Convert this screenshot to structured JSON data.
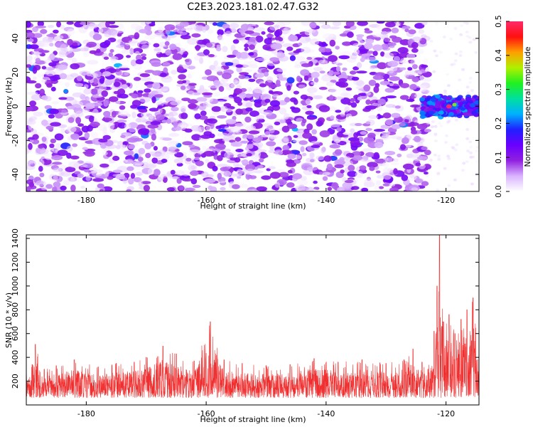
{
  "title": "C2E3.2023.181.02.47.G32",
  "colors": {
    "snr_line": "#f03030",
    "colormap": [
      "#ffffff",
      "#d9b3ff",
      "#9020e0",
      "#6a00ff",
      "#2020ff",
      "#00b0ff",
      "#00e0a0",
      "#20f020",
      "#b0f000",
      "#ffa000",
      "#ff1010",
      "#ff2a6a"
    ]
  },
  "chart_data": [
    {
      "type": "heatmap",
      "name_role": "spectrogram",
      "xlabel": "Height of straight line (km)",
      "ylabel": "Frequency (Hz)",
      "xlim": [
        -190,
        -114.5
      ],
      "ylim": [
        -50,
        50
      ],
      "xticks": [
        -180,
        -160,
        -140,
        -120
      ],
      "yticks": [
        -40,
        -20,
        0,
        20,
        40
      ],
      "colorbar": {
        "label": "Normalized spectral amplitude",
        "range": [
          0.0,
          0.5
        ],
        "ticks": [
          0.0,
          0.1,
          0.2,
          0.3,
          0.4,
          0.5
        ],
        "tick_labels": [
          "0.0",
          "0.1",
          "0.2",
          "0.3",
          "0.4",
          "0.5"
        ],
        "placement": "right"
      },
      "description_regions": {
        "broadband_noise_height_range": [
          -190,
          -123
        ],
        "quiet_band_height_range": [
          -123,
          -118
        ],
        "signal_band_height_range": [
          -124,
          -114.5
        ],
        "signal_frequency_range": [
          -5,
          5
        ],
        "signal_peak": {
          "height": -119.5,
          "frequency": 0,
          "amplitude": 0.5
        }
      },
      "grid": false
    },
    {
      "type": "line",
      "xlabel": "Height of straight line (km)",
      "ylabel": "SNR (10 * v/v)",
      "xlim": [
        -190,
        -114.5
      ],
      "ylim": [
        0,
        1430
      ],
      "xticks": [
        -180,
        -160,
        -140,
        -120
      ],
      "yticks": [
        200,
        400,
        600,
        800,
        1000,
        1200,
        1400
      ],
      "grid": false,
      "series": [
        {
          "color": "#f03030",
          "points": [
            [
              -190,
              260
            ],
            [
              -189,
              340
            ],
            [
              -188.5,
              510
            ],
            [
              -187,
              300
            ],
            [
              -185,
              330
            ],
            [
              -182,
              380
            ],
            [
              -178,
              320
            ],
            [
              -175,
              350
            ],
            [
              -172,
              360
            ],
            [
              -170,
              400
            ],
            [
              -167.2,
              495
            ],
            [
              -165,
              430
            ],
            [
              -162,
              370
            ],
            [
              -159.3,
              700
            ],
            [
              -157,
              380
            ],
            [
              -154,
              350
            ],
            [
              -150,
              330
            ],
            [
              -146,
              340
            ],
            [
              -142,
              390
            ],
            [
              -138,
              360
            ],
            [
              -134,
              380
            ],
            [
              -130,
              350
            ],
            [
              -127,
              380
            ],
            [
              -125.5,
              470
            ],
            [
              -124,
              360
            ],
            [
              -123,
              300
            ],
            [
              -122,
              620
            ],
            [
              -121.5,
              1000
            ],
            [
              -121.1,
              1430
            ],
            [
              -120.5,
              700
            ],
            [
              -119.5,
              760
            ],
            [
              -118.5,
              600
            ],
            [
              -117.5,
              720
            ],
            [
              -116.5,
              800
            ],
            [
              -115.5,
              900
            ],
            [
              -114.5,
              420
            ]
          ],
          "baseline_median": 170,
          "noise_floor_min": 60
        }
      ]
    }
  ]
}
